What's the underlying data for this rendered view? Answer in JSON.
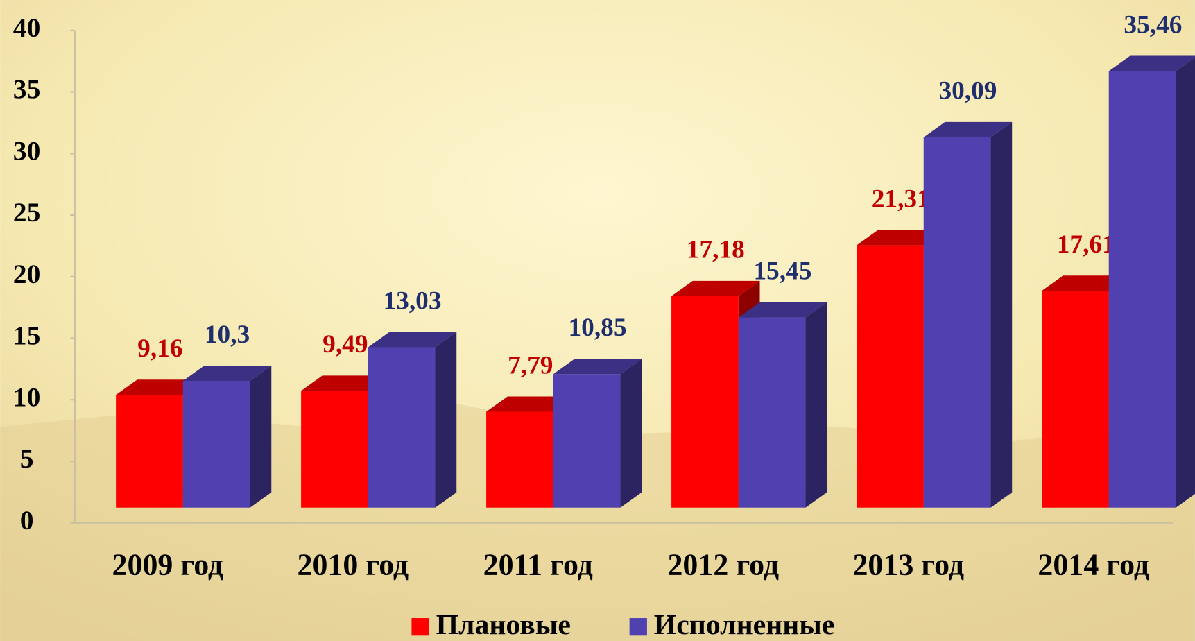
{
  "chart_data": {
    "type": "bar",
    "categories": [
      "2009 год",
      "2010 год",
      "2011 год",
      "2012 год",
      "2013 год",
      "2014 год"
    ],
    "series": [
      {
        "name": "Плановые",
        "color": "#ff0000",
        "values": [
          9.16,
          9.49,
          7.79,
          17.18,
          21.31,
          17.61
        ],
        "value_labels": [
          "9,16",
          "9,49",
          "7,79",
          "17,18",
          "21,31",
          "17,61"
        ]
      },
      {
        "name": "Исполненные",
        "color": "#5040b0",
        "values": [
          10.3,
          13.03,
          10.85,
          15.45,
          30.09,
          35.46
        ],
        "value_labels": [
          "10,3",
          "13,03",
          "10,85",
          "15,45",
          "30,09",
          "35,46"
        ]
      }
    ],
    "ylim": [
      0,
      40
    ],
    "yticks": [
      0,
      5,
      10,
      15,
      20,
      25,
      30,
      35,
      40
    ],
    "grid": false,
    "legend": "bottom"
  }
}
